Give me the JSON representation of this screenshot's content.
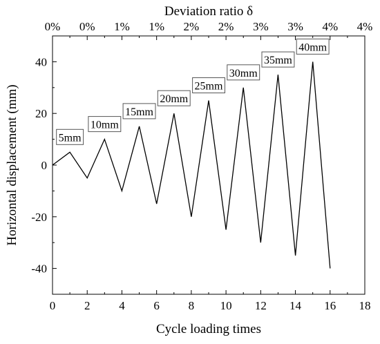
{
  "chart_data": {
    "type": "line",
    "xlabel": "Cycle loading times",
    "ylabel": "Horizontal displacement (mm)",
    "top_axis_label": "Deviation ratio δ",
    "xlim": [
      0,
      18
    ],
    "ylim": [
      -50,
      50
    ],
    "x_ticks": [
      0,
      2,
      4,
      6,
      8,
      10,
      12,
      14,
      16,
      18
    ],
    "y_ticks": [
      -40,
      -20,
      0,
      20,
      40
    ],
    "top_tick_labels": [
      "0%",
      "0%",
      "1%",
      "1%",
      "2%",
      "2%",
      "3%",
      "3%",
      "4%",
      "4%"
    ],
    "grid": false,
    "series": [
      {
        "x": [
          0,
          1,
          2,
          3,
          4,
          5,
          6,
          7,
          8,
          9,
          10,
          11,
          12,
          13,
          14,
          15,
          16
        ],
        "y": [
          0,
          5,
          -5,
          10,
          -10,
          15,
          -15,
          20,
          -20,
          25,
          -25,
          30,
          -30,
          35,
          -35,
          40,
          -40
        ],
        "color": "#000000"
      }
    ],
    "annotations": [
      {
        "x": 1,
        "y": 5,
        "text": "5mm"
      },
      {
        "x": 3,
        "y": 10,
        "text": "10mm"
      },
      {
        "x": 5,
        "y": 15,
        "text": "15mm"
      },
      {
        "x": 7,
        "y": 20,
        "text": "20mm"
      },
      {
        "x": 9,
        "y": 25,
        "text": "25mm"
      },
      {
        "x": 11,
        "y": 30,
        "text": "30mm"
      },
      {
        "x": 13,
        "y": 35,
        "text": "35mm"
      },
      {
        "x": 15,
        "y": 40,
        "text": "40mm"
      }
    ]
  }
}
